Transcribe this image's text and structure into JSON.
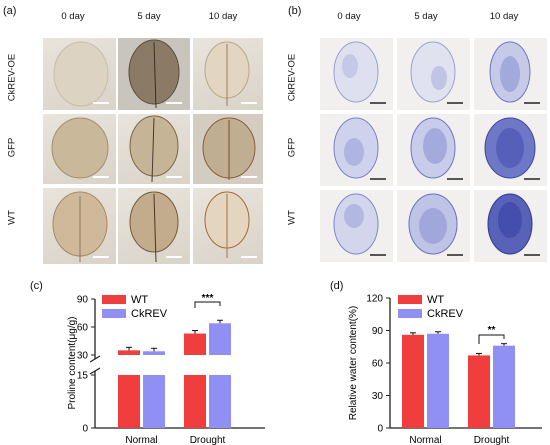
{
  "panel_a": {
    "label": "(a)",
    "columns": [
      "0 day",
      "5 day",
      "10 day"
    ],
    "rows": [
      "CkREV-OE",
      "GFP",
      "WT"
    ]
  },
  "panel_b": {
    "label": "(b)",
    "columns": [
      "0 day",
      "5 day",
      "10 day"
    ],
    "rows": [
      "CkREV-OE",
      "GFP",
      "WT"
    ]
  },
  "panel_c": {
    "label": "(c)"
  },
  "panel_d": {
    "label": "(d)"
  },
  "chart_data": [
    {
      "type": "bar",
      "categories": [
        "Normal",
        "Drought"
      ],
      "series": [
        {
          "name": "WT",
          "values": [
            35,
            53
          ],
          "color": "#f03e3e"
        },
        {
          "name": "CkREV",
          "values": [
            34,
            64
          ],
          "color": "#8f8ff4"
        }
      ],
      "ylabel": "Proline content(μg/g)",
      "yticks_lower": [
        "0",
        "15"
      ],
      "yticks_upper": [
        "30",
        "60",
        "90"
      ],
      "axis_break": true,
      "significance": [
        {
          "category": "Drought",
          "label": "***"
        }
      ]
    },
    {
      "type": "bar",
      "categories": [
        "Normal",
        "Drought"
      ],
      "series": [
        {
          "name": "WT",
          "values": [
            86,
            67
          ],
          "color": "#f03e3e"
        },
        {
          "name": "CkREV",
          "values": [
            87,
            76
          ],
          "color": "#8f8ff4"
        }
      ],
      "ylabel": "Relative water content(%)",
      "yticks": [
        "0",
        "30",
        "60",
        "90",
        "120"
      ],
      "ylim": [
        0,
        120
      ],
      "significance": [
        {
          "category": "Drought",
          "label": "**"
        }
      ]
    }
  ]
}
